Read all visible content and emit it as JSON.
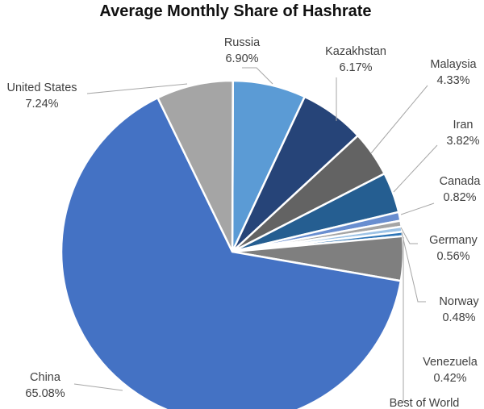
{
  "chart_data": {
    "type": "pie",
    "title": "Average Monthly Share of Hashrate",
    "slices": [
      {
        "label": "Russia",
        "value": 6.9,
        "display": "6.90%",
        "color": "#5b9bd5"
      },
      {
        "label": "Kazakhstan",
        "value": 6.17,
        "display": "6.17%",
        "color": "#264478"
      },
      {
        "label": "Malaysia",
        "value": 4.33,
        "display": "4.33%",
        "color": "#636363"
      },
      {
        "label": "Iran",
        "value": 3.82,
        "display": "3.82%",
        "color": "#255e91"
      },
      {
        "label": "Canada",
        "value": 0.82,
        "display": "0.82%",
        "color": "#698ed0"
      },
      {
        "label": "Germany",
        "value": 0.56,
        "display": "0.56%",
        "color": "#a5a5a5"
      },
      {
        "label": "Norway",
        "value": 0.48,
        "display": "0.48%",
        "color": "#9dc3e6"
      },
      {
        "label": "Venezuela",
        "value": 0.42,
        "display": "0.42%",
        "color": "#2e75b6"
      },
      {
        "label": "Best of World",
        "value": 4.18,
        "display": "",
        "color": "#7f7f7f"
      },
      {
        "label": "China",
        "value": 65.08,
        "display": "65.08%",
        "color": "#4472c4"
      },
      {
        "label": "United States",
        "value": 7.24,
        "display": "7.24%",
        "color": "#a5a5a5"
      }
    ]
  }
}
